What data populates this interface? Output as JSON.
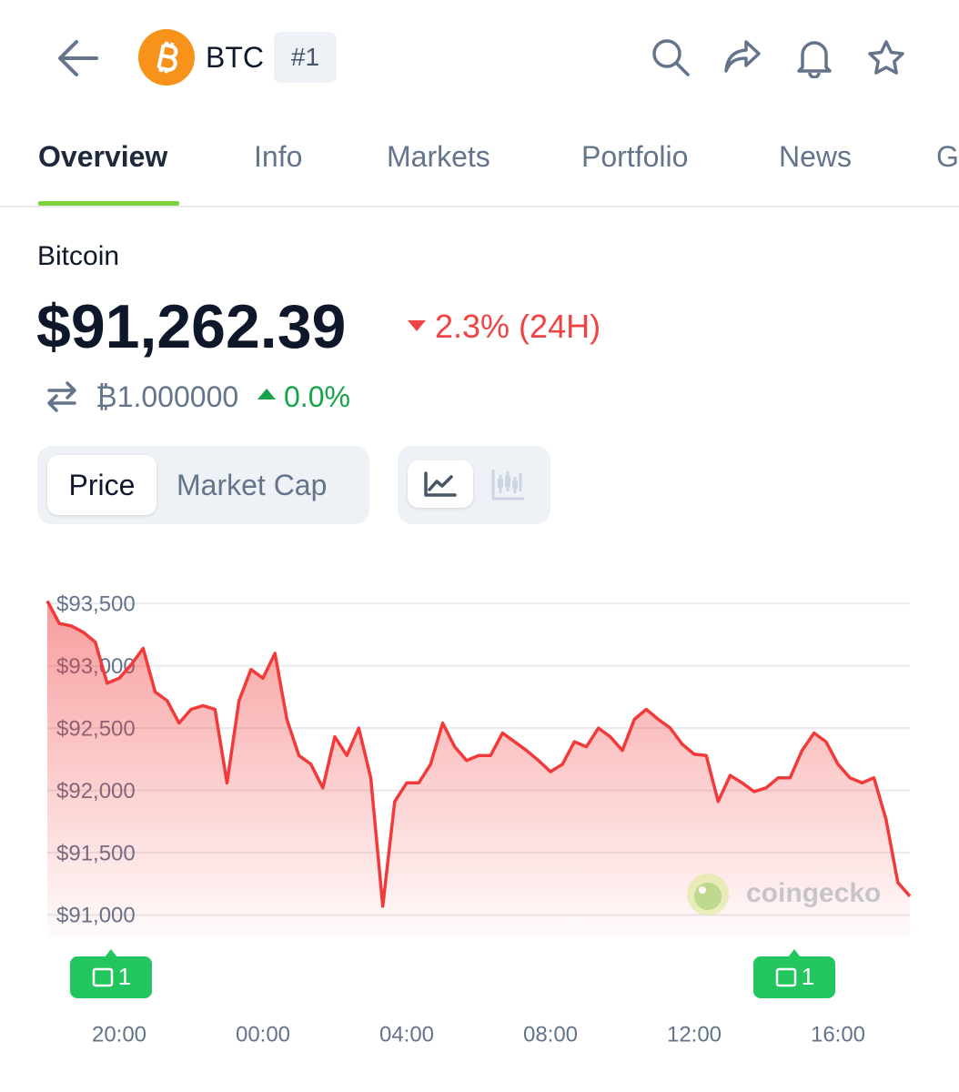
{
  "header": {
    "symbol": "BTC",
    "rank": "#1"
  },
  "tabs": [
    "Overview",
    "Info",
    "Markets",
    "Portfolio",
    "News",
    "G"
  ],
  "coin": {
    "name": "Bitcoin",
    "price": "$91,262.39",
    "change": "2.3% (24H)",
    "btc_price": "₿1.000000",
    "btc_change": "0.0%"
  },
  "toggle": [
    "Price",
    "Market Cap"
  ],
  "chart_data": {
    "type": "line",
    "color": "#f23a3a",
    "grid": true,
    "watermark": "coingecko",
    "news_badges": [
      "1",
      "1"
    ],
    "ylim": [
      90820,
      93560
    ],
    "yticks": [
      {
        "value": 91000,
        "label": "$91,000"
      },
      {
        "value": 91500,
        "label": "$91,500"
      },
      {
        "value": 92000,
        "label": "$92,000"
      },
      {
        "value": 92500,
        "label": "$92,500"
      },
      {
        "value": 93000,
        "label": "$93,000"
      },
      {
        "value": 93500,
        "label": "$93,500"
      }
    ],
    "categories": [
      null,
      null,
      null,
      null,
      null,
      null,
      "20:00",
      null,
      null,
      null,
      null,
      null,
      null,
      null,
      null,
      null,
      null,
      null,
      "00:00",
      null,
      null,
      null,
      null,
      null,
      null,
      null,
      null,
      null,
      null,
      null,
      "04:00",
      null,
      null,
      null,
      null,
      null,
      null,
      null,
      null,
      null,
      null,
      null,
      "08:00",
      null,
      null,
      null,
      null,
      null,
      null,
      null,
      null,
      null,
      null,
      null,
      "12:00",
      null,
      null,
      null,
      null,
      null,
      null,
      null,
      null,
      null,
      null,
      null,
      "16:00",
      null,
      null,
      null,
      null,
      null,
      null
    ],
    "values": [
      93520,
      93340,
      93320,
      93270,
      93190,
      92860,
      92900,
      93010,
      93140,
      92790,
      92720,
      92540,
      92650,
      92680,
      92650,
      92060,
      92720,
      92970,
      92900,
      93100,
      92570,
      92280,
      92210,
      92020,
      92430,
      92280,
      92500,
      92100,
      91070,
      91910,
      92060,
      92060,
      92210,
      92540,
      92350,
      92240,
      92280,
      92280,
      92460,
      92390,
      92320,
      92240,
      92150,
      92210,
      92390,
      92350,
      92500,
      92430,
      92320,
      92570,
      92650,
      92570,
      92500,
      92370,
      92290,
      92280,
      91910,
      92120,
      92060,
      91990,
      92020,
      92100,
      92100,
      92320,
      92460,
      92390,
      92210,
      92100,
      92060,
      92100,
      91770,
      91260,
      91150
    ]
  }
}
